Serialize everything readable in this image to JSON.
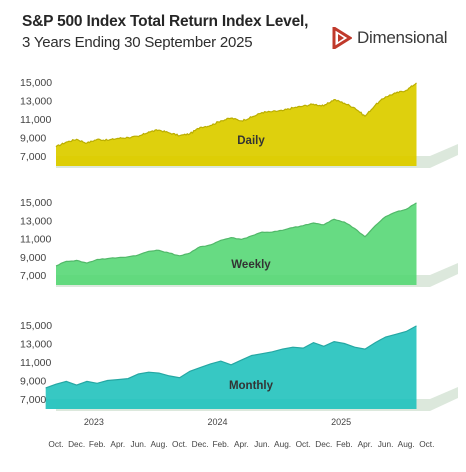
{
  "header": {
    "title": "S&P 500 Index Total Return Index Level,",
    "subtitle": "3 Years Ending 30 September 2025",
    "brand": "Dimensional"
  },
  "colors": {
    "daily_fill": "#dccd00",
    "weekly_fill": "#5fd97c",
    "monthly_fill": "#2cc5c0",
    "base_shadow": "#dce8dc",
    "brand_red": "#c0392b"
  },
  "chart_data": [
    {
      "type": "area",
      "name": "Daily",
      "ylim": [
        7000,
        15000
      ],
      "yticks": [
        "7,000",
        "9,000",
        "11,000",
        "13,000",
        "15,000"
      ],
      "ytick_values": [
        7000,
        9000,
        11000,
        13000,
        15000
      ],
      "x_months": [
        "Oct.",
        "Dec.",
        "Feb.",
        "Apr.",
        "Jun.",
        "Aug.",
        "Oct.",
        "Dec.",
        "Feb.",
        "Apr.",
        "Jun.",
        "Aug.",
        "Oct.",
        "Dec.",
        "Feb.",
        "Apr.",
        "Jun.",
        "Aug.",
        "Oct."
      ],
      "x_years": [
        "2023",
        "2024",
        "2025"
      ],
      "x": [
        "2022-10",
        "2022-11",
        "2022-12",
        "2023-01",
        "2023-02",
        "2023-03",
        "2023-04",
        "2023-05",
        "2023-06",
        "2023-07",
        "2023-08",
        "2023-09",
        "2023-10",
        "2023-11",
        "2023-12",
        "2024-01",
        "2024-02",
        "2024-03",
        "2024-04",
        "2024-05",
        "2024-06",
        "2024-07",
        "2024-08",
        "2024-09",
        "2024-10",
        "2024-11",
        "2024-12",
        "2025-01",
        "2025-02",
        "2025-03",
        "2025-04",
        "2025-05",
        "2025-06",
        "2025-07",
        "2025-08",
        "2025-09"
      ],
      "values": [
        8000,
        8500,
        8800,
        8400,
        8800,
        8700,
        8900,
        9000,
        9100,
        9600,
        9800,
        9500,
        9200,
        9400,
        10100,
        10300,
        10800,
        11100,
        10800,
        11200,
        11700,
        11800,
        11900,
        12200,
        12400,
        12600,
        12400,
        13100,
        12700,
        12200,
        11300,
        12500,
        13400,
        13800,
        14100,
        14900
      ]
    },
    {
      "type": "area",
      "name": "Weekly",
      "ylim": [
        7000,
        15000
      ],
      "yticks": [
        "7,000",
        "9,000",
        "11,000",
        "13,000",
        "15,000"
      ],
      "ytick_values": [
        7000,
        9000,
        11000,
        13000,
        15000
      ],
      "x": [
        "2022-10",
        "2022-11",
        "2022-12",
        "2023-01",
        "2023-02",
        "2023-03",
        "2023-04",
        "2023-05",
        "2023-06",
        "2023-07",
        "2023-08",
        "2023-09",
        "2023-10",
        "2023-11",
        "2023-12",
        "2024-01",
        "2024-02",
        "2024-03",
        "2024-04",
        "2024-05",
        "2024-06",
        "2024-07",
        "2024-08",
        "2024-09",
        "2024-10",
        "2024-11",
        "2024-12",
        "2025-01",
        "2025-02",
        "2025-03",
        "2025-04",
        "2025-05",
        "2025-06",
        "2025-07",
        "2025-08",
        "2025-09"
      ],
      "values": [
        8000,
        8500,
        8600,
        8300,
        8700,
        8800,
        8900,
        9000,
        9200,
        9600,
        9700,
        9400,
        9100,
        9400,
        10100,
        10300,
        10800,
        11100,
        10900,
        11300,
        11700,
        11700,
        11900,
        12200,
        12400,
        12700,
        12500,
        13100,
        12800,
        12100,
        11200,
        12400,
        13400,
        13900,
        14200,
        14900
      ]
    },
    {
      "type": "area",
      "name": "Monthly",
      "ylim": [
        7000,
        15000
      ],
      "yticks": [
        "7,000",
        "9,000",
        "11,000",
        "13,000",
        "15,000"
      ],
      "ytick_values": [
        7000,
        9000,
        11000,
        13000,
        15000
      ],
      "x": [
        "2022-09",
        "2022-10",
        "2022-11",
        "2022-12",
        "2023-01",
        "2023-02",
        "2023-03",
        "2023-04",
        "2023-05",
        "2023-06",
        "2023-07",
        "2023-08",
        "2023-09",
        "2023-10",
        "2023-11",
        "2023-12",
        "2024-01",
        "2024-02",
        "2024-03",
        "2024-04",
        "2024-05",
        "2024-06",
        "2024-07",
        "2024-08",
        "2024-09",
        "2024-10",
        "2024-11",
        "2024-12",
        "2025-01",
        "2025-02",
        "2025-03",
        "2025-04",
        "2025-05",
        "2025-06",
        "2025-07",
        "2025-08",
        "2025-09"
      ],
      "values": [
        8200,
        8600,
        8900,
        8500,
        8900,
        8700,
        9000,
        9100,
        9200,
        9700,
        9900,
        9800,
        9500,
        9300,
        10000,
        10400,
        10800,
        11100,
        10700,
        11200,
        11700,
        11900,
        12100,
        12400,
        12600,
        12500,
        13100,
        12700,
        13200,
        13000,
        12600,
        12400,
        13100,
        13700,
        14000,
        14300,
        14900
      ]
    }
  ]
}
